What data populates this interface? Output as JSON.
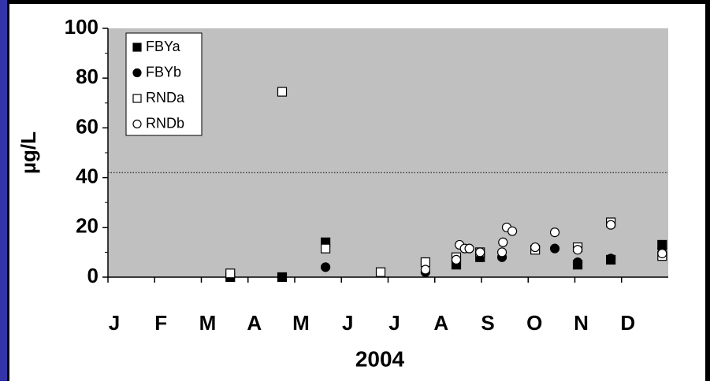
{
  "chart_data": {
    "type": "scatter",
    "ylabel": "µg/L",
    "xlabel": "2004",
    "xlim": [
      0,
      12
    ],
    "xticks": [
      {
        "value": 0,
        "label": "J"
      },
      {
        "value": 1,
        "label": "F"
      },
      {
        "value": 2,
        "label": "M"
      },
      {
        "value": 3,
        "label": "A"
      },
      {
        "value": 4,
        "label": "M"
      },
      {
        "value": 5,
        "label": "J"
      },
      {
        "value": 6,
        "label": "J"
      },
      {
        "value": 7,
        "label": "A"
      },
      {
        "value": 8,
        "label": "S"
      },
      {
        "value": 9,
        "label": "O"
      },
      {
        "value": 10,
        "label": "N"
      },
      {
        "value": 11,
        "label": "D"
      }
    ],
    "ylim": [
      0,
      100
    ],
    "yticks": [
      0,
      20,
      40,
      60,
      80,
      100
    ],
    "yminor": [
      10,
      30,
      50,
      70,
      90
    ],
    "hline": 42,
    "hline_style": "dotted",
    "background": "#c0c0c0",
    "legend": "upper left",
    "series": [
      {
        "name": "FBYa",
        "marker": "square",
        "color": "#000000",
        "fill": "#000000",
        "x": [
          2.62,
          3.73,
          4.66,
          7.46,
          7.97,
          10.06,
          10.77,
          11.87
        ],
        "values": [
          0,
          0,
          14,
          5,
          8,
          5,
          7,
          13
        ]
      },
      {
        "name": "FBYb",
        "marker": "circle",
        "color": "#000000",
        "fill": "#000000",
        "x": [
          4.66,
          6.8,
          7.46,
          7.97,
          8.44,
          9.57,
          10.06,
          10.77,
          11.87
        ],
        "values": [
          4,
          2,
          7.5,
          8.5,
          8,
          11.5,
          6,
          7.5,
          11.5
        ]
      },
      {
        "name": "RNDa",
        "marker": "square",
        "color": "#000000",
        "fill": "#ffffff",
        "x": [
          2.62,
          3.73,
          4.66,
          5.84,
          6.8,
          7.46,
          7.97,
          9.15,
          10.06,
          10.77,
          11.87
        ],
        "values": [
          1.5,
          74.5,
          11.5,
          2,
          6,
          8,
          10,
          11,
          12,
          22,
          8.5
        ]
      },
      {
        "name": "RNDb",
        "marker": "circle",
        "color": "#000000",
        "fill": "#ffffff",
        "x": [
          6.8,
          7.46,
          7.53,
          7.64,
          7.74,
          7.97,
          8.44,
          8.46,
          8.54,
          8.66,
          9.15,
          9.57,
          10.06,
          10.77,
          11.87
        ],
        "values": [
          3,
          7,
          13,
          11.5,
          11.5,
          10,
          10,
          14,
          20,
          18.5,
          12,
          18,
          11,
          21,
          9.5
        ]
      }
    ]
  }
}
